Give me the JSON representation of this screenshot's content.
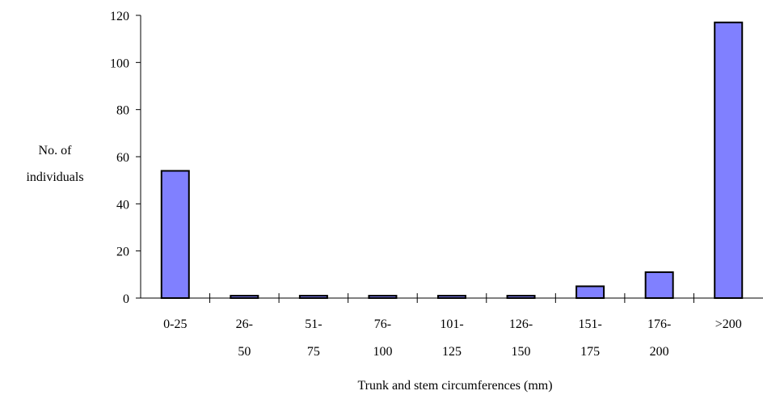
{
  "chart_data": {
    "type": "bar",
    "categories": [
      [
        "0-25"
      ],
      [
        "26-",
        "50"
      ],
      [
        "51-",
        "75"
      ],
      [
        "76-",
        "100"
      ],
      [
        "101-",
        "125"
      ],
      [
        "126-",
        "150"
      ],
      [
        "151-",
        "175"
      ],
      [
        "176-",
        "200"
      ],
      [
        ">200"
      ]
    ],
    "values": [
      54,
      1,
      1,
      1,
      1,
      1,
      5,
      11,
      117
    ],
    "ylabel": [
      "No. of",
      "individuals"
    ],
    "xlabel": "Trunk and stem circumferences (mm)",
    "ylim": [
      0,
      120
    ],
    "yticks": [
      0,
      20,
      40,
      60,
      80,
      100,
      120
    ],
    "grid": false,
    "bar_color": "#8080ff"
  }
}
